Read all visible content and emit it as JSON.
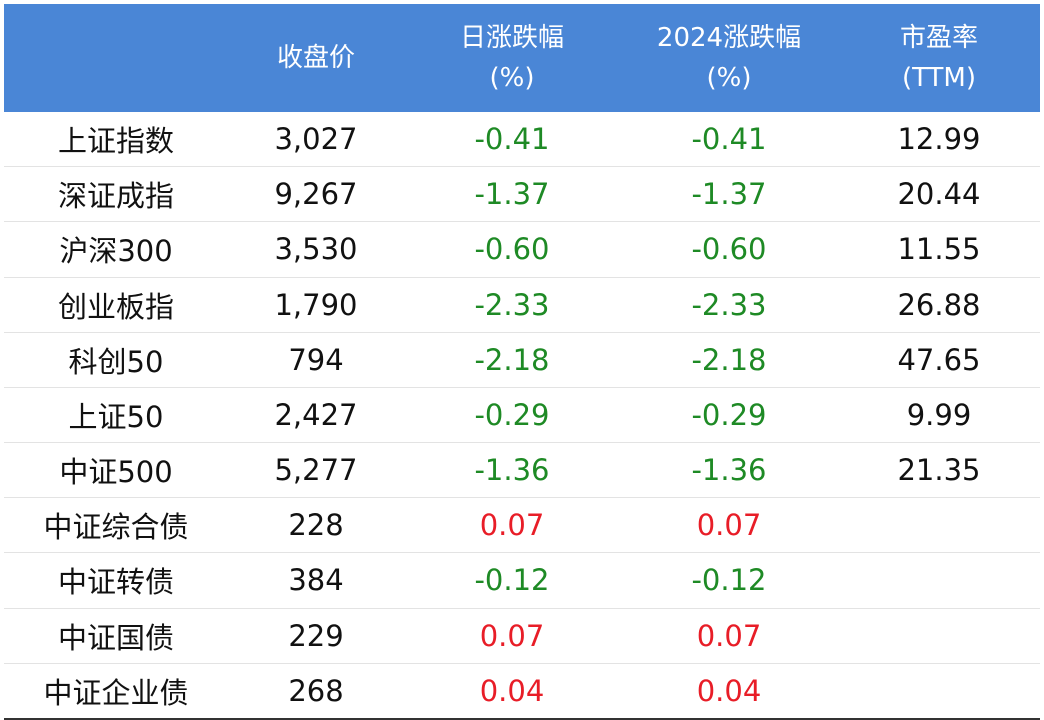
{
  "table": {
    "columns": [
      {
        "line1": "",
        "line2": ""
      },
      {
        "line1": "收盘价",
        "line2": ""
      },
      {
        "line1": "日涨跌幅",
        "line2": "(%)"
      },
      {
        "line1": "2024涨跌幅",
        "line2": "(%)"
      },
      {
        "line1": "市盈率",
        "line2": "(TTM)"
      }
    ],
    "rows": [
      {
        "name": "上证指数",
        "close": "3,027",
        "day": "-0.41",
        "ytd": "-0.41",
        "pe": "12.99"
      },
      {
        "name": "深证成指",
        "close": "9,267",
        "day": "-1.37",
        "ytd": "-1.37",
        "pe": "20.44"
      },
      {
        "name": "沪深300",
        "close": "3,530",
        "day": "-0.60",
        "ytd": "-0.60",
        "pe": "11.55"
      },
      {
        "name": "创业板指",
        "close": "1,790",
        "day": "-2.33",
        "ytd": "-2.33",
        "pe": "26.88"
      },
      {
        "name": "科创50",
        "close": "794",
        "day": "-2.18",
        "ytd": "-2.18",
        "pe": "47.65"
      },
      {
        "name": "上证50",
        "close": "2,427",
        "day": "-0.29",
        "ytd": "-0.29",
        "pe": "9.99"
      },
      {
        "name": "中证500",
        "close": "5,277",
        "day": "-1.36",
        "ytd": "-1.36",
        "pe": "21.35"
      },
      {
        "name": "中证综合债",
        "close": "228",
        "day": "0.07",
        "ytd": "0.07",
        "pe": ""
      },
      {
        "name": "中证转债",
        "close": "384",
        "day": "-0.12",
        "ytd": "-0.12",
        "pe": ""
      },
      {
        "name": "中证国债",
        "close": "229",
        "day": "0.07",
        "ytd": "0.07",
        "pe": ""
      },
      {
        "name": "中证企业债",
        "close": "268",
        "day": "0.04",
        "ytd": "0.04",
        "pe": ""
      }
    ],
    "colors": {
      "header_bg": "#4a86d6",
      "negative": "#1e8a25",
      "positive": "#e81d27"
    }
  }
}
